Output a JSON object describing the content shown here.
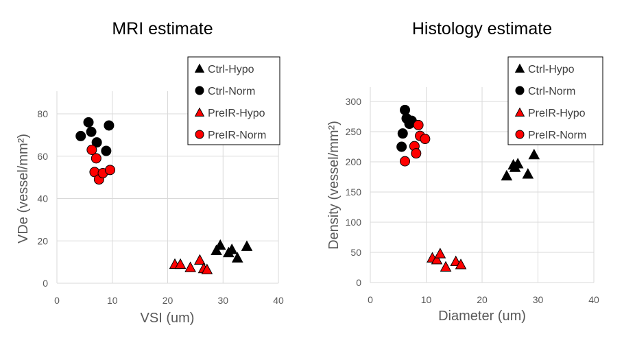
{
  "colors": {
    "ctrl": "#000000",
    "preir": "#ff0000",
    "marker_stroke": "#000000",
    "grid": "#d9d9d9",
    "tick_text": "#595959",
    "legend_text": "#404040"
  },
  "legend": {
    "items": [
      {
        "label": "Ctrl-Hypo",
        "marker": "triangle",
        "color": "#000000"
      },
      {
        "label": "Ctrl-Norm",
        "marker": "circle",
        "color": "#000000"
      },
      {
        "label": "PreIR-Hypo",
        "marker": "triangle",
        "color": "#ff0000"
      },
      {
        "label": "PreIR-Norm",
        "marker": "circle",
        "color": "#ff0000"
      }
    ]
  },
  "chart_data": [
    {
      "type": "scatter",
      "title": "MRI estimate",
      "xlabel": "VSI (um)",
      "ylabel": "VDe (vessel/mm²)",
      "xlim": [
        0,
        40
      ],
      "ylim": [
        0,
        90
      ],
      "xticks": [
        0,
        10,
        20,
        30,
        40
      ],
      "yticks": [
        0,
        20,
        40,
        60,
        80
      ],
      "legend_position": "top-right",
      "series": [
        {
          "name": "Ctrl-Hypo",
          "marker": "triangle",
          "color": "#000000",
          "x": [
            28.8,
            29.5,
            31.0,
            31.6,
            32.6,
            34.3
          ],
          "y": [
            15.5,
            18.0,
            14.5,
            16.0,
            12.0,
            17.5
          ]
        },
        {
          "name": "Ctrl-Norm",
          "marker": "circle",
          "color": "#000000",
          "x": [
            4.3,
            5.7,
            6.2,
            7.2,
            8.9,
            9.4
          ],
          "y": [
            69.5,
            76.0,
            71.5,
            66.5,
            62.5,
            74.5
          ]
        },
        {
          "name": "PreIR-Hypo",
          "marker": "triangle",
          "color": "#ff0000",
          "x": [
            21.3,
            22.3,
            24.1,
            25.8,
            26.5,
            27.1
          ],
          "y": [
            9.0,
            9.0,
            7.5,
            11.0,
            7.0,
            6.5
          ]
        },
        {
          "name": "PreIR-Norm",
          "marker": "circle",
          "color": "#ff0000",
          "x": [
            6.3,
            6.8,
            7.1,
            7.6,
            8.3,
            9.6
          ],
          "y": [
            63.0,
            52.5,
            59.0,
            49.0,
            52.0,
            53.5
          ]
        }
      ]
    },
    {
      "type": "scatter",
      "title": "Histology estimate",
      "xlabel": "Diameter (um)",
      "ylabel": "Density (vessel/mm²)",
      "xlim": [
        0,
        40
      ],
      "ylim": [
        0,
        320
      ],
      "xticks": [
        0,
        10,
        20,
        30,
        40
      ],
      "yticks": [
        0,
        50,
        100,
        150,
        200,
        250,
        300
      ],
      "legend_position": "top-right",
      "series": [
        {
          "name": "Ctrl-Hypo",
          "marker": "triangle",
          "color": "#000000",
          "x": [
            24.4,
            25.6,
            25.9,
            26.4,
            28.2,
            29.3
          ],
          "y": [
            177,
            195,
            191,
            197,
            180,
            212
          ]
        },
        {
          "name": "Ctrl-Norm",
          "marker": "circle",
          "color": "#000000",
          "x": [
            5.6,
            5.8,
            6.2,
            6.5,
            7.0,
            7.4
          ],
          "y": [
            225,
            247,
            286,
            272,
            263,
            268
          ]
        },
        {
          "name": "PreIR-Hypo",
          "marker": "triangle",
          "color": "#ff0000",
          "x": [
            11.1,
            11.9,
            12.5,
            13.5,
            15.3,
            16.2
          ],
          "y": [
            41,
            38,
            48,
            26,
            35,
            30
          ]
        },
        {
          "name": "PreIR-Norm",
          "marker": "circle",
          "color": "#ff0000",
          "x": [
            6.2,
            7.9,
            8.2,
            8.6,
            8.9,
            9.8
          ],
          "y": [
            201,
            226,
            214,
            261,
            243,
            238
          ]
        }
      ]
    }
  ]
}
